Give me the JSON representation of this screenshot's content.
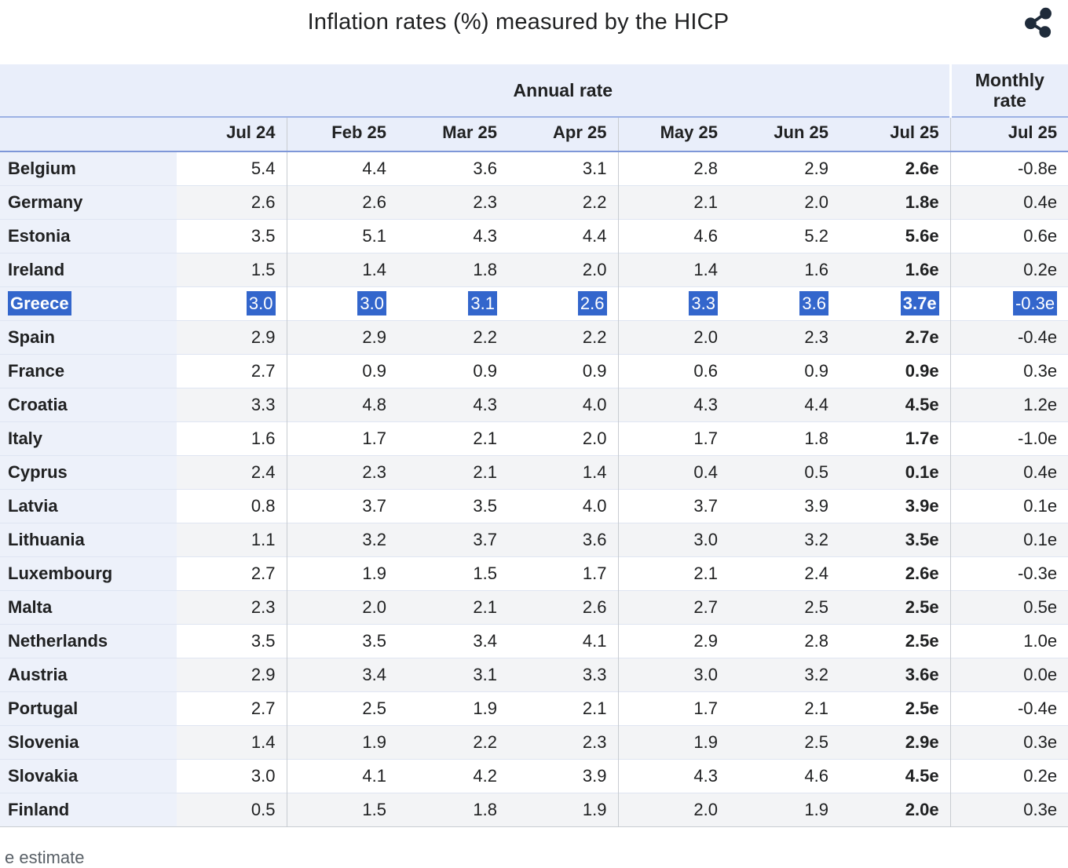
{
  "ui": {
    "title": "Inflation rates (%) measured by the HICP",
    "share_icon": "share-icon",
    "footnote": "e estimate",
    "colors": {
      "selection_blue": "#3366cc",
      "header_bg": "#e9eefa",
      "country_col_bg": "#edf1fa",
      "even_row_bg": "#f3f4f6",
      "header_rule_top": "#9db2e4",
      "header_rule_bottom": "#7e97d8",
      "divider_grey": "#c8ccd1"
    }
  },
  "chart_data": {
    "type": "table",
    "title": "Inflation rates (%) measured by the HICP",
    "column_groups": [
      {
        "label": "Annual rate",
        "span": 7
      },
      {
        "label": "Monthly rate",
        "span": 1
      }
    ],
    "columns": [
      "Jul 24",
      "Feb 25",
      "Mar 25",
      "Apr 25",
      "May 25",
      "Jun 25",
      "Jul 25"
    ],
    "monthly_column": "Jul 25",
    "highlighted_row": "Greece",
    "footnote": "e estimate",
    "rows": [
      {
        "country": "Belgium",
        "annual": [
          "5.4",
          "4.4",
          "3.6",
          "3.1",
          "2.8",
          "2.9",
          "2.6e"
        ],
        "monthly": "-0.8e"
      },
      {
        "country": "Germany",
        "annual": [
          "2.6",
          "2.6",
          "2.3",
          "2.2",
          "2.1",
          "2.0",
          "1.8e"
        ],
        "monthly": "0.4e"
      },
      {
        "country": "Estonia",
        "annual": [
          "3.5",
          "5.1",
          "4.3",
          "4.4",
          "4.6",
          "5.2",
          "5.6e"
        ],
        "monthly": "0.6e"
      },
      {
        "country": "Ireland",
        "annual": [
          "1.5",
          "1.4",
          "1.8",
          "2.0",
          "1.4",
          "1.6",
          "1.6e"
        ],
        "monthly": "0.2e"
      },
      {
        "country": "Greece",
        "annual": [
          "3.0",
          "3.0",
          "3.1",
          "2.6",
          "3.3",
          "3.6",
          "3.7e"
        ],
        "monthly": "-0.3e"
      },
      {
        "country": "Spain",
        "annual": [
          "2.9",
          "2.9",
          "2.2",
          "2.2",
          "2.0",
          "2.3",
          "2.7e"
        ],
        "monthly": "-0.4e"
      },
      {
        "country": "France",
        "annual": [
          "2.7",
          "0.9",
          "0.9",
          "0.9",
          "0.6",
          "0.9",
          "0.9e"
        ],
        "monthly": "0.3e"
      },
      {
        "country": "Croatia",
        "annual": [
          "3.3",
          "4.8",
          "4.3",
          "4.0",
          "4.3",
          "4.4",
          "4.5e"
        ],
        "monthly": "1.2e"
      },
      {
        "country": "Italy",
        "annual": [
          "1.6",
          "1.7",
          "2.1",
          "2.0",
          "1.7",
          "1.8",
          "1.7e"
        ],
        "monthly": "-1.0e"
      },
      {
        "country": "Cyprus",
        "annual": [
          "2.4",
          "2.3",
          "2.1",
          "1.4",
          "0.4",
          "0.5",
          "0.1e"
        ],
        "monthly": "0.4e"
      },
      {
        "country": "Latvia",
        "annual": [
          "0.8",
          "3.7",
          "3.5",
          "4.0",
          "3.7",
          "3.9",
          "3.9e"
        ],
        "monthly": "0.1e"
      },
      {
        "country": "Lithuania",
        "annual": [
          "1.1",
          "3.2",
          "3.7",
          "3.6",
          "3.0",
          "3.2",
          "3.5e"
        ],
        "monthly": "0.1e"
      },
      {
        "country": "Luxembourg",
        "annual": [
          "2.7",
          "1.9",
          "1.5",
          "1.7",
          "2.1",
          "2.4",
          "2.6e"
        ],
        "monthly": "-0.3e"
      },
      {
        "country": "Malta",
        "annual": [
          "2.3",
          "2.0",
          "2.1",
          "2.6",
          "2.7",
          "2.5",
          "2.5e"
        ],
        "monthly": "0.5e"
      },
      {
        "country": "Netherlands",
        "annual": [
          "3.5",
          "3.5",
          "3.4",
          "4.1",
          "2.9",
          "2.8",
          "2.5e"
        ],
        "monthly": "1.0e"
      },
      {
        "country": "Austria",
        "annual": [
          "2.9",
          "3.4",
          "3.1",
          "3.3",
          "3.0",
          "3.2",
          "3.6e"
        ],
        "monthly": "0.0e"
      },
      {
        "country": "Portugal",
        "annual": [
          "2.7",
          "2.5",
          "1.9",
          "2.1",
          "1.7",
          "2.1",
          "2.5e"
        ],
        "monthly": "-0.4e"
      },
      {
        "country": "Slovenia",
        "annual": [
          "1.4",
          "1.9",
          "2.2",
          "2.3",
          "1.9",
          "2.5",
          "2.9e"
        ],
        "monthly": "0.3e"
      },
      {
        "country": "Slovakia",
        "annual": [
          "3.0",
          "4.1",
          "4.2",
          "3.9",
          "4.3",
          "4.6",
          "4.5e"
        ],
        "monthly": "0.2e"
      },
      {
        "country": "Finland",
        "annual": [
          "0.5",
          "1.5",
          "1.8",
          "1.9",
          "2.0",
          "1.9",
          "2.0e"
        ],
        "monthly": "0.3e"
      }
    ]
  }
}
